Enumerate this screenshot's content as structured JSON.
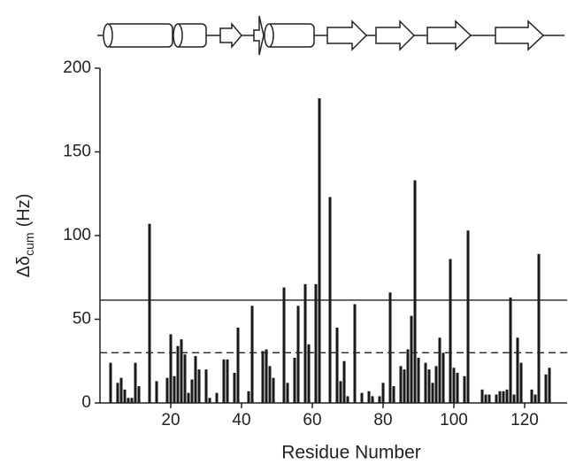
{
  "chart_data": {
    "type": "bar",
    "x_label": "Residue Number",
    "y_label": {
      "main": "Δδ",
      "sub": "cum",
      "unit": "(Hz)"
    },
    "x": [
      3,
      5,
      6,
      7,
      8,
      9,
      10,
      11,
      14,
      16,
      19,
      20,
      21,
      22,
      23,
      24,
      25,
      26,
      27,
      28,
      30,
      31,
      33,
      35,
      36,
      38,
      39,
      42,
      43,
      46,
      47,
      48,
      49,
      52,
      53,
      55,
      56,
      58,
      59,
      61,
      62,
      65,
      67,
      68,
      69,
      70,
      72,
      74,
      76,
      77,
      79,
      80,
      82,
      83,
      85,
      86,
      87,
      88,
      89,
      90,
      92,
      93,
      94,
      95,
      96,
      97,
      99,
      100,
      101,
      103,
      104,
      108,
      109,
      110,
      112,
      113,
      114,
      115,
      116,
      117,
      118,
      119,
      122,
      123,
      124,
      126,
      127
    ],
    "values": [
      24,
      12,
      15,
      8,
      3,
      3,
      24,
      10,
      107,
      13,
      15,
      41,
      16,
      34,
      38,
      29,
      6,
      14,
      28,
      20,
      20,
      3,
      6,
      26,
      26,
      18,
      45,
      7,
      58,
      31,
      32,
      22,
      15,
      69,
      12,
      27,
      58,
      71,
      35,
      71,
      182,
      123,
      45,
      13,
      25,
      4,
      59,
      6,
      7,
      4,
      4,
      12,
      66,
      10,
      22,
      20,
      32,
      52,
      133,
      27,
      24,
      20,
      12,
      22,
      39,
      30,
      86,
      21,
      18,
      16,
      103,
      8,
      5,
      5,
      5,
      7,
      7,
      8,
      63,
      5,
      39,
      24,
      8,
      5,
      89,
      17,
      21
    ],
    "color": "#1a1a1a",
    "xlim": [
      0,
      132
    ],
    "xticks": [
      20,
      40,
      60,
      80,
      100,
      120
    ],
    "ylim": [
      0,
      200
    ],
    "yticks": [
      0,
      50,
      100,
      150,
      200
    ],
    "reference_lines": [
      {
        "value": 61.4,
        "style": "solid"
      },
      {
        "value": 30,
        "style": "dashed"
      }
    ]
  }
}
